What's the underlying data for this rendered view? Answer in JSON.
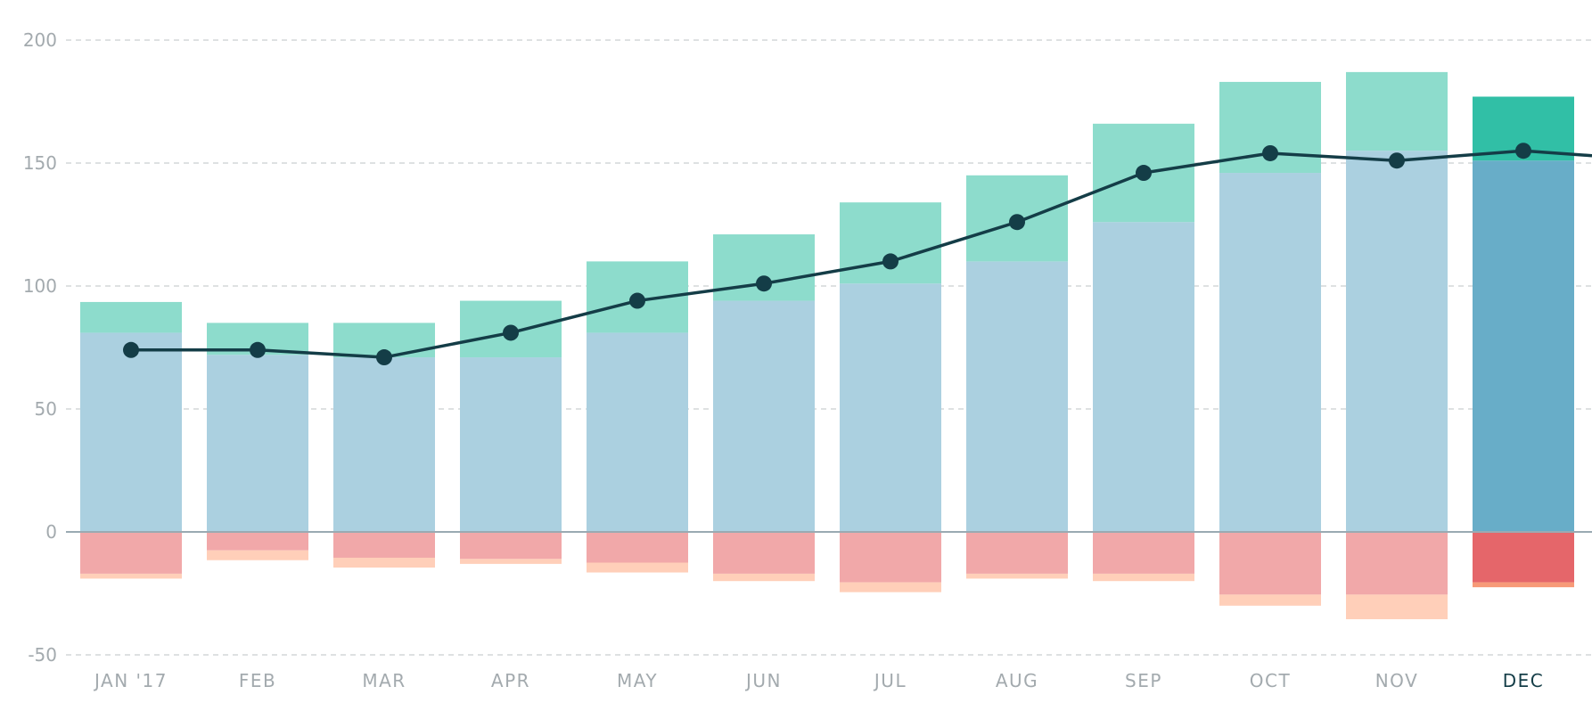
{
  "chart_data": {
    "type": "bar",
    "title": "",
    "xlabel": "",
    "ylabel": "",
    "ylim": [
      -50,
      200
    ],
    "y_ticks": [
      "200",
      "150",
      "100",
      "50",
      "0",
      "-50"
    ],
    "y_tick_values": [
      200,
      150,
      100,
      50,
      0,
      -50
    ],
    "grid": true,
    "legend": "none",
    "categories": [
      "JAN '17",
      "FEB",
      "MAR",
      "APR",
      "MAY",
      "JUN",
      "JUL",
      "AUG",
      "SEP",
      "OCT",
      "NOV",
      "DEC"
    ],
    "highlighted_category": "DEC",
    "stack_positive": [
      {
        "values": [
          81,
          72,
          71,
          71,
          81,
          94,
          101,
          110,
          126,
          146,
          155,
          151
        ],
        "color": "#abd0e0",
        "highlight_color": "#68adc8"
      },
      {
        "values": [
          12.5,
          13,
          14,
          23,
          29,
          27,
          33,
          35,
          40,
          37,
          32,
          26
        ],
        "color": "#8ddccc",
        "highlight_color": "#31bfa6"
      }
    ],
    "stack_negative": [
      {
        "values": [
          -17,
          -7.5,
          -10.5,
          -11,
          -12.5,
          -17,
          -20.5,
          -17,
          -17,
          -25.5,
          -25.5,
          -20.5
        ],
        "color": "#f1a8a9",
        "highlight_color": "#e5666a"
      },
      {
        "values": [
          -2,
          -4,
          -4,
          -2,
          -4,
          -3,
          -4,
          -2,
          -3,
          -4.5,
          -10,
          -2
        ],
        "color": "#ffcfb9",
        "highlight_color": "#f79a78"
      }
    ],
    "line_series": {
      "values": [
        74,
        74,
        71,
        81,
        94,
        101,
        110,
        126,
        146,
        154,
        151,
        155
      ],
      "end_value": 153,
      "color": "#143d47"
    },
    "colors": {
      "grid": "#d3d7d9",
      "zero_line": "#9aaab2",
      "tick_label": "#a3aaae",
      "tick_label_highlight": "#143d47"
    }
  }
}
